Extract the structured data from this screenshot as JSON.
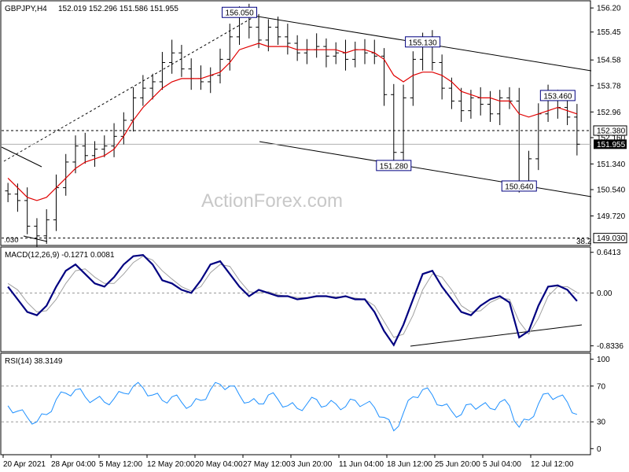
{
  "header": {
    "symbol": "GBPJPY,H4",
    "ohlc": "152.019 152.296 151.586 151.955"
  },
  "watermark": "ActionForex.com",
  "colors": {
    "candle": "#000000",
    "ma": "#e00000",
    "macd": "#000080",
    "signal": "#a0a0a0",
    "rsi": "#1e90ff",
    "box_border": "#000080",
    "current_price_box": "#000000"
  },
  "chart_data": [
    {
      "type": "line",
      "panel": "price",
      "title": "GBPJPY,H4",
      "y_ticks": [
        156.2,
        155.45,
        154.58,
        153.78,
        152.96,
        152.16,
        151.34,
        150.54,
        149.72
      ],
      "y_tick_labels": [
        "156.20",
        "155.45",
        "154.58",
        "153.78",
        "152.96",
        "152.160",
        "151.340",
        "150.540",
        "149.720"
      ],
      "ylim": [
        148.85,
        156.35
      ],
      "x_labels": [
        "20 Apr 2021",
        "28 Apr 04:00",
        "5 May 12:00",
        "12 May 20:00",
        "20 May 04:00",
        "27 May 12:00",
        "3 Jun 20:00",
        "11 Jun 04:00",
        "18 Jun 12:00",
        "25 Jun 20:00",
        "5 Jul 04:00",
        "12 Jul 12:00"
      ],
      "series": [
        {
          "close": [
            150.4,
            150.2,
            149.4,
            149.1,
            149.6,
            150.6,
            151.4,
            151.9,
            151.6,
            151.8,
            151.9,
            152.2,
            152.7,
            153.4,
            153.7,
            153.9,
            154.5,
            154.8,
            154.3,
            154.0,
            153.9,
            154.1,
            154.6,
            155.3,
            156.0,
            155.6,
            155.2,
            155.6,
            155.3,
            155.1,
            154.8,
            154.9,
            155.0,
            154.7,
            154.8,
            154.6,
            154.9,
            154.8,
            154.7,
            153.5,
            151.7,
            153.4,
            154.6,
            155.1,
            154.5,
            153.7,
            153.3,
            153.0,
            153.4,
            153.2,
            152.9,
            153.4,
            153.3,
            150.8,
            151.5,
            152.9,
            153.4,
            153.1,
            152.8,
            151.955
          ],
          "ma": [
            150.9,
            150.6,
            150.3,
            150.2,
            150.3,
            150.6,
            150.9,
            151.2,
            151.4,
            151.5,
            151.6,
            151.8,
            152.2,
            152.7,
            153.1,
            153.4,
            153.7,
            153.9,
            154.0,
            154.0,
            154.0,
            154.1,
            154.2,
            154.5,
            154.9,
            155.0,
            155.1,
            155.0,
            155.0,
            155.0,
            154.9,
            154.9,
            154.9,
            154.9,
            154.9,
            154.8,
            154.9,
            154.9,
            154.8,
            154.6,
            154.1,
            153.9,
            154.1,
            154.2,
            154.2,
            154.1,
            153.9,
            153.6,
            153.5,
            153.4,
            153.4,
            153.3,
            153.3,
            152.9,
            152.8,
            152.9,
            153.0,
            153.1,
            153.0,
            152.9
          ]
        }
      ],
      "levels": [
        {
          "label": "152.380",
          "value": 152.38
        },
        {
          "label": "149.030",
          "value": 149.03
        }
      ],
      "current_price": "151.955",
      "annotations": [
        {
          "label": "156.050",
          "value": 156.05
        },
        {
          "label": "155.130",
          "value": 155.13
        },
        {
          "label": "153.460",
          "value": 153.46
        },
        {
          "label": "151.280",
          "value": 151.28
        },
        {
          "label": "150.640",
          "value": 150.64
        }
      ],
      "partial_labels": [
        ".030",
        "38.2"
      ]
    },
    {
      "type": "line",
      "panel": "macd",
      "title": "MACD(12,26,9) -0.1271 0.0081",
      "y_ticks": [
        0.6413,
        0.0,
        -0.8336
      ],
      "y_tick_labels": [
        "0.6413",
        "0.00",
        "-0.8336"
      ],
      "ylim": [
        -0.9,
        0.7
      ],
      "series": [
        {
          "name": "MACD",
          "values": [
            0.1,
            -0.1,
            -0.3,
            -0.35,
            -0.2,
            0.1,
            0.35,
            0.45,
            0.3,
            0.15,
            0.1,
            0.25,
            0.45,
            0.58,
            0.6,
            0.45,
            0.2,
            0.15,
            0.05,
            0.0,
            0.2,
            0.45,
            0.5,
            0.3,
            0.1,
            -0.05,
            0.05,
            0.0,
            -0.05,
            -0.05,
            -0.1,
            -0.08,
            -0.05,
            -0.05,
            -0.08,
            -0.05,
            -0.1,
            -0.1,
            -0.3,
            -0.6,
            -0.82,
            -0.5,
            -0.1,
            0.3,
            0.35,
            0.1,
            -0.1,
            -0.3,
            -0.35,
            -0.2,
            -0.1,
            -0.05,
            -0.15,
            -0.7,
            -0.6,
            -0.2,
            0.1,
            0.12,
            0.05,
            -0.1271
          ]
        },
        {
          "name": "Signal",
          "values": [
            0.15,
            0.05,
            -0.15,
            -0.3,
            -0.28,
            -0.1,
            0.15,
            0.35,
            0.38,
            0.25,
            0.15,
            0.15,
            0.3,
            0.48,
            0.58,
            0.52,
            0.35,
            0.22,
            0.1,
            0.03,
            0.1,
            0.32,
            0.45,
            0.42,
            0.2,
            0.02,
            0.0,
            0.02,
            -0.03,
            -0.05,
            -0.07,
            -0.08,
            -0.06,
            -0.05,
            -0.06,
            -0.06,
            -0.08,
            -0.1,
            -0.2,
            -0.45,
            -0.7,
            -0.65,
            -0.35,
            0.05,
            0.3,
            0.25,
            0.05,
            -0.2,
            -0.3,
            -0.28,
            -0.15,
            -0.08,
            -0.1,
            -0.45,
            -0.65,
            -0.4,
            -0.05,
            0.1,
            0.1,
            0.0081
          ]
        }
      ]
    },
    {
      "type": "line",
      "panel": "rsi",
      "title": "RSI(14) 38.3149",
      "y_ticks": [
        100,
        70,
        30,
        0
      ],
      "y_tick_labels": [
        "100",
        "70",
        "30",
        "0"
      ],
      "ylim": [
        -5,
        105
      ],
      "levels": [
        70,
        30
      ],
      "series": [
        {
          "name": "RSI",
          "values": [
            48,
            42,
            35,
            30,
            38,
            55,
            62,
            66,
            58,
            55,
            52,
            56,
            62,
            70,
            68,
            60,
            54,
            58,
            52,
            48,
            54,
            66,
            72,
            70,
            60,
            52,
            50,
            60,
            55,
            48,
            45,
            50,
            55,
            48,
            50,
            47,
            54,
            50,
            46,
            35,
            20,
            40,
            58,
            66,
            60,
            48,
            42,
            38,
            50,
            48,
            45,
            52,
            48,
            24,
            32,
            50,
            62,
            58,
            52,
            38.3149
          ]
        }
      ]
    }
  ]
}
